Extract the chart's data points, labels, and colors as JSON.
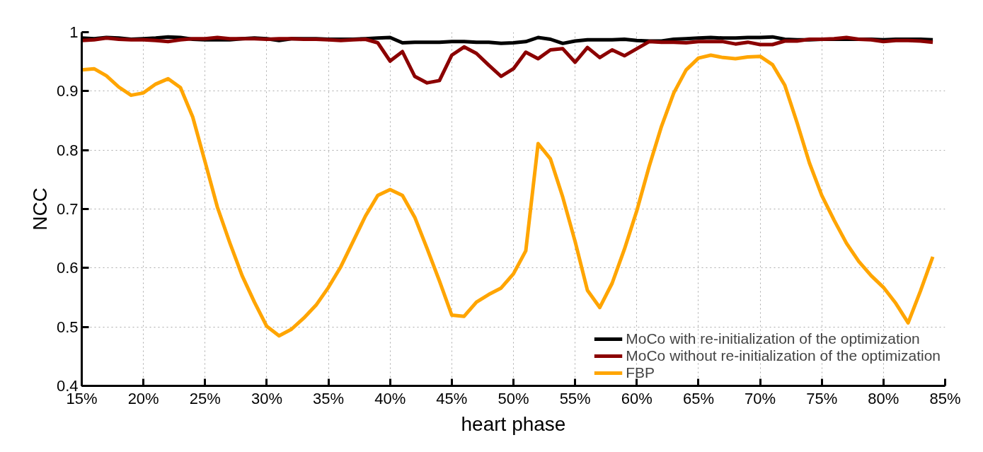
{
  "chart_data": {
    "type": "line",
    "xlabel": "heart phase",
    "ylabel": "NCC",
    "x": [
      15,
      16,
      17,
      18,
      19,
      20,
      21,
      22,
      23,
      24,
      25,
      26,
      27,
      28,
      29,
      30,
      31,
      32,
      33,
      34,
      35,
      36,
      37,
      38,
      39,
      40,
      41,
      42,
      43,
      44,
      45,
      46,
      47,
      48,
      49,
      50,
      51,
      52,
      53,
      54,
      55,
      56,
      57,
      58,
      59,
      60,
      61,
      62,
      63,
      64,
      65,
      66,
      67,
      68,
      69,
      70,
      71,
      72,
      73,
      74,
      75,
      76,
      77,
      78,
      79,
      80,
      81,
      82,
      83,
      84
    ],
    "series": [
      {
        "name": "MoCo with re-initialization of the optimization",
        "color": "#000000",
        "values": [
          0.99,
          0.989,
          0.991,
          0.99,
          0.988,
          0.989,
          0.99,
          0.992,
          0.991,
          0.988,
          0.987,
          0.987,
          0.987,
          0.989,
          0.99,
          0.989,
          0.986,
          0.989,
          0.989,
          0.989,
          0.988,
          0.988,
          0.988,
          0.989,
          0.99,
          0.991,
          0.982,
          0.983,
          0.983,
          0.983,
          0.984,
          0.984,
          0.983,
          0.983,
          0.981,
          0.982,
          0.984,
          0.991,
          0.988,
          0.981,
          0.985,
          0.987,
          0.987,
          0.987,
          0.988,
          0.986,
          0.985,
          0.985,
          0.988,
          0.989,
          0.99,
          0.991,
          0.99,
          0.99,
          0.991,
          0.991,
          0.992,
          0.988,
          0.987,
          0.987,
          0.988,
          0.988,
          0.988,
          0.988,
          0.988,
          0.987,
          0.988,
          0.988,
          0.988,
          0.987
        ]
      },
      {
        "name": "MoCo without re-initialization of the optimization",
        "color": "#8b0000",
        "values": [
          0.986,
          0.987,
          0.99,
          0.988,
          0.987,
          0.987,
          0.986,
          0.984,
          0.987,
          0.989,
          0.989,
          0.991,
          0.989,
          0.989,
          0.989,
          0.988,
          0.989,
          0.989,
          0.988,
          0.988,
          0.987,
          0.986,
          0.987,
          0.988,
          0.982,
          0.951,
          0.967,
          0.925,
          0.914,
          0.918,
          0.961,
          0.975,
          0.964,
          0.944,
          0.925,
          0.938,
          0.966,
          0.955,
          0.97,
          0.972,
          0.949,
          0.974,
          0.957,
          0.97,
          0.96,
          0.972,
          0.984,
          0.983,
          0.983,
          0.982,
          0.984,
          0.984,
          0.984,
          0.98,
          0.983,
          0.979,
          0.979,
          0.985,
          0.985,
          0.988,
          0.988,
          0.989,
          0.991,
          0.988,
          0.987,
          0.984,
          0.986,
          0.986,
          0.985,
          0.983
        ]
      },
      {
        "name": "FBP",
        "color": "#ffa500",
        "values": [
          0.936,
          0.938,
          0.926,
          0.907,
          0.893,
          0.897,
          0.912,
          0.921,
          0.906,
          0.856,
          0.78,
          0.703,
          0.643,
          0.587,
          0.542,
          0.501,
          0.485,
          0.496,
          0.515,
          0.537,
          0.567,
          0.602,
          0.645,
          0.688,
          0.723,
          0.733,
          0.723,
          0.686,
          0.633,
          0.578,
          0.52,
          0.518,
          0.542,
          0.555,
          0.566,
          0.59,
          0.629,
          0.811,
          0.785,
          0.72,
          0.645,
          0.562,
          0.533,
          0.574,
          0.632,
          0.697,
          0.772,
          0.84,
          0.897,
          0.936,
          0.956,
          0.961,
          0.957,
          0.955,
          0.958,
          0.959,
          0.945,
          0.91,
          0.846,
          0.778,
          0.723,
          0.681,
          0.642,
          0.611,
          0.587,
          0.567,
          0.54,
          0.507,
          0.561,
          0.619
        ]
      }
    ],
    "xlim": [
      15,
      85
    ],
    "xticks": [
      {
        "value": 15,
        "label": "15%"
      },
      {
        "value": 20,
        "label": "20%"
      },
      {
        "value": 25,
        "label": "25%"
      },
      {
        "value": 30,
        "label": "30%"
      },
      {
        "value": 35,
        "label": "35%"
      },
      {
        "value": 40,
        "label": "40%"
      },
      {
        "value": 45,
        "label": "45%"
      },
      {
        "value": 50,
        "label": "50%"
      },
      {
        "value": 55,
        "label": "55%"
      },
      {
        "value": 60,
        "label": "60%"
      },
      {
        "value": 65,
        "label": "65%"
      },
      {
        "value": 70,
        "label": "70%"
      },
      {
        "value": 75,
        "label": "75%"
      },
      {
        "value": 80,
        "label": "80%"
      },
      {
        "value": 85,
        "label": "85%"
      }
    ],
    "ylim": [
      0.4,
      1.0
    ],
    "yticks": [
      0.4,
      0.5,
      0.6,
      0.7,
      0.8,
      0.9,
      1.0
    ],
    "grid": true,
    "legend": "bottom right",
    "line_style": "solid",
    "marker": "none"
  }
}
